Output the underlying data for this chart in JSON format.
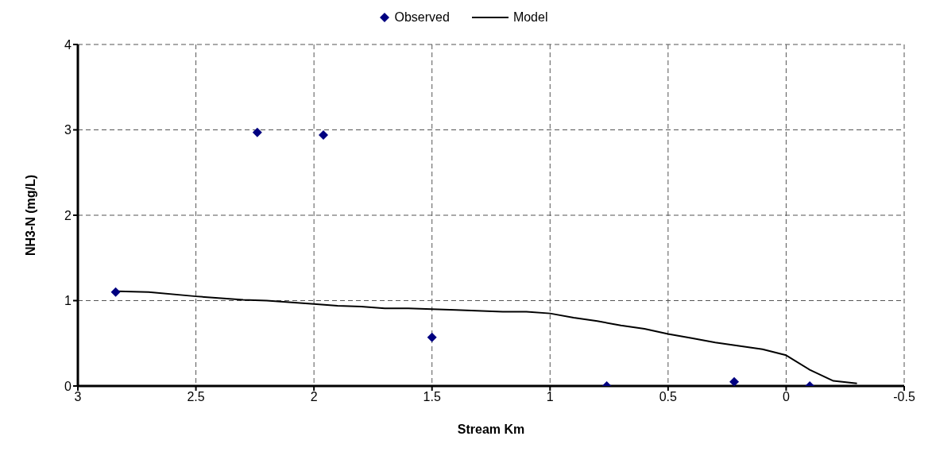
{
  "chart_data": {
    "type": "scatter",
    "xlabel": "Stream Km",
    "ylabel": "NH3-N (mg/L)",
    "xlim": [
      3,
      -0.5
    ],
    "xticks": [
      3,
      2.5,
      2,
      1.5,
      1,
      0.5,
      0,
      -0.5
    ],
    "ylim": [
      0,
      4
    ],
    "yticks": [
      0,
      1,
      2,
      3,
      4
    ],
    "grid": true,
    "legend": "top",
    "series": [
      {
        "name": "Observed",
        "marker": "diamond",
        "color": "#000080",
        "x": [
          2.84,
          2.24,
          1.96,
          1.5,
          0.76,
          0.22,
          -0.1
        ],
        "values": [
          1.1,
          2.97,
          2.94,
          0.57,
          0,
          0.05,
          0
        ]
      },
      {
        "name": "Model",
        "type": "line",
        "marker": "none",
        "color": "#000000",
        "x": [
          2.83,
          2.7,
          2.5,
          2.3,
          2.2,
          2.0,
          1.9,
          1.8,
          1.7,
          1.6,
          1.5,
          1.4,
          1.2,
          1.1,
          1.0,
          0.9,
          0.8,
          0.7,
          0.6,
          0.5,
          0.4,
          0.3,
          0.2,
          0.1,
          0.0,
          -0.1,
          -0.2,
          -0.3
        ],
        "values": [
          1.11,
          1.1,
          1.05,
          1.01,
          1.0,
          0.96,
          0.94,
          0.93,
          0.91,
          0.91,
          0.9,
          0.89,
          0.87,
          0.87,
          0.85,
          0.8,
          0.76,
          0.71,
          0.67,
          0.61,
          0.56,
          0.51,
          0.47,
          0.43,
          0.36,
          0.19,
          0.06,
          0.03
        ]
      }
    ]
  }
}
